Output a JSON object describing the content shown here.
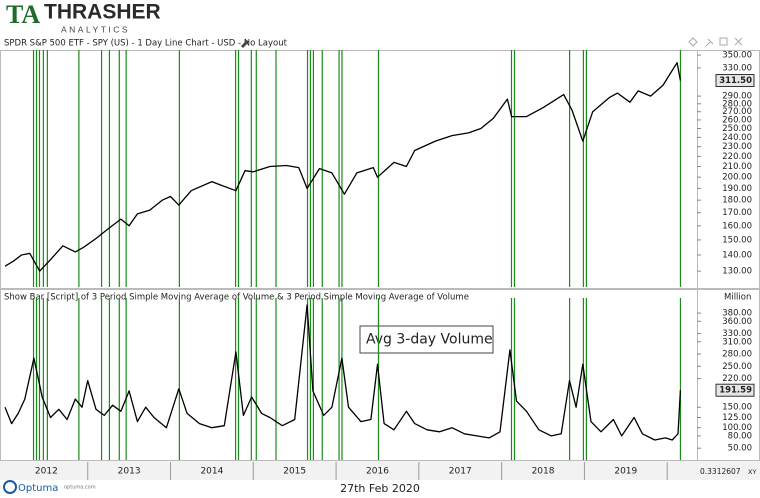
{
  "header": {
    "logo": "TA",
    "brand": "THRASHER",
    "tagline": "ANALYTICS"
  },
  "chart_data": [
    {
      "type": "line",
      "title": "SPDR S&P 500 ETF - SPY (US) - 1 Day Line Chart - USD - No Layout",
      "color": "#000000",
      "log_scale": true,
      "xlim": [
        2011.94,
        2020.36
      ],
      "ylim": [
        122,
        355
      ],
      "x": [
        2012.0,
        2012.1,
        2012.2,
        2012.3,
        2012.42,
        2012.55,
        2012.7,
        2012.85,
        2012.95,
        2013.1,
        2013.25,
        2013.4,
        2013.5,
        2013.6,
        2013.75,
        2013.9,
        2014.0,
        2014.1,
        2014.25,
        2014.5,
        2014.6,
        2014.79,
        2014.9,
        2015.0,
        2015.2,
        2015.4,
        2015.55,
        2015.65,
        2015.8,
        2015.95,
        2016.1,
        2016.25,
        2016.45,
        2016.5,
        2016.7,
        2016.85,
        2016.95,
        2017.2,
        2017.4,
        2017.6,
        2017.75,
        2017.9,
        2018.07,
        2018.12,
        2018.3,
        2018.5,
        2018.75,
        2018.85,
        2018.98,
        2019.1,
        2019.3,
        2019.4,
        2019.55,
        2019.65,
        2019.8,
        2019.95,
        2020.05,
        2020.12,
        2020.16
      ],
      "values": [
        133,
        136,
        140,
        141,
        130,
        137,
        146,
        142,
        145,
        151,
        158,
        165,
        160,
        169,
        172,
        180,
        183,
        176,
        188,
        196,
        193,
        188,
        206,
        205,
        210,
        211,
        209,
        190,
        208,
        204,
        185,
        204,
        209,
        200,
        214,
        210,
        226,
        236,
        242,
        245,
        250,
        262,
        286,
        264,
        264,
        275,
        292,
        272,
        236,
        270,
        288,
        294,
        282,
        297,
        290,
        305,
        324,
        338,
        311.5
      ],
      "yticks": [
        {
          "value": 130,
          "label": "130.00"
        },
        {
          "value": 140,
          "label": "140.00"
        },
        {
          "value": 150,
          "label": "150.00"
        },
        {
          "value": 160,
          "label": "160.00"
        },
        {
          "value": 170,
          "label": "170.00"
        },
        {
          "value": 180,
          "label": "180.00"
        },
        {
          "value": 190,
          "label": "190.00"
        },
        {
          "value": 200,
          "label": "200.00"
        },
        {
          "value": 210,
          "label": "210.00"
        },
        {
          "value": 220,
          "label": "220.00"
        },
        {
          "value": 230,
          "label": "230.00"
        },
        {
          "value": 240,
          "label": "240.00"
        },
        {
          "value": 250,
          "label": "250.00"
        },
        {
          "value": 260,
          "label": "260.00"
        },
        {
          "value": 270,
          "label": "270.00"
        },
        {
          "value": 280,
          "label": "280.00"
        },
        {
          "value": 290,
          "label": "290.00"
        },
        {
          "value": 330,
          "label": "330.00"
        },
        {
          "value": 350,
          "label": "350.00"
        }
      ],
      "last": {
        "value": 311.5,
        "label": "311.50"
      },
      "signal_color": "#1a8c1a",
      "signals": [
        2012.345,
        2012.381,
        2012.417,
        2012.464,
        2012.512,
        2012.893,
        2013.167,
        2013.262,
        2013.381,
        2013.464,
        2014.107,
        2014.786,
        2014.821,
        2014.976,
        2015.036,
        2015.274,
        2015.655,
        2015.69,
        2015.726,
        2015.833,
        2016.036,
        2016.071,
        2016.512,
        2018.119,
        2018.155,
        2018.821,
        2018.988,
        2019.024,
        2020.16
      ]
    },
    {
      "type": "line",
      "title": "Show Bar [Script] of 3 Period Simple Moving Average of Volume & 3 Period Simple Moving Average of Volume",
      "y_unit": "Million",
      "color": "#000000",
      "log_scale": false,
      "annotation": "Avg 3-day Volume",
      "xlim": [
        2011.94,
        2020.36
      ],
      "ylim": [
        26,
        412
      ],
      "x": [
        2012.0,
        2012.08,
        2012.16,
        2012.24,
        2012.35,
        2012.45,
        2012.55,
        2012.65,
        2012.75,
        2012.85,
        2012.93,
        2013.0,
        2013.1,
        2013.2,
        2013.3,
        2013.4,
        2013.5,
        2013.6,
        2013.7,
        2013.8,
        2013.95,
        2014.1,
        2014.2,
        2014.35,
        2014.5,
        2014.65,
        2014.79,
        2014.88,
        2014.98,
        2015.1,
        2015.2,
        2015.35,
        2015.5,
        2015.65,
        2015.72,
        2015.85,
        2015.95,
        2016.07,
        2016.15,
        2016.3,
        2016.42,
        2016.5,
        2016.58,
        2016.7,
        2016.85,
        2016.95,
        2017.1,
        2017.25,
        2017.4,
        2017.55,
        2017.7,
        2017.85,
        2017.98,
        2018.1,
        2018.18,
        2018.3,
        2018.45,
        2018.6,
        2018.72,
        2018.82,
        2018.9,
        2018.98,
        2019.08,
        2019.2,
        2019.35,
        2019.45,
        2019.6,
        2019.7,
        2019.85,
        2019.98,
        2020.06,
        2020.13,
        2020.16
      ],
      "values": [
        150,
        110,
        135,
        170,
        270,
        175,
        125,
        145,
        120,
        170,
        150,
        215,
        145,
        130,
        155,
        140,
        190,
        115,
        150,
        125,
        100,
        195,
        135,
        110,
        100,
        105,
        285,
        130,
        175,
        135,
        125,
        105,
        120,
        400,
        190,
        130,
        150,
        270,
        150,
        115,
        120,
        255,
        110,
        95,
        140,
        110,
        95,
        90,
        100,
        85,
        80,
        75,
        90,
        290,
        165,
        140,
        95,
        80,
        85,
        215,
        150,
        255,
        115,
        90,
        120,
        80,
        125,
        85,
        70,
        75,
        70,
        85,
        191.59
      ],
      "yticks": [
        {
          "value": 50,
          "label": "50.00"
        },
        {
          "value": 80,
          "label": "80.00"
        },
        {
          "value": 100,
          "label": "100.00"
        },
        {
          "value": 125,
          "label": "125.00"
        },
        {
          "value": 150,
          "label": "150.00"
        },
        {
          "value": 220,
          "label": "220.00"
        },
        {
          "value": 250,
          "label": "250.00"
        },
        {
          "value": 280,
          "label": "280.00"
        },
        {
          "value": 310,
          "label": "310.00"
        },
        {
          "value": 330,
          "label": "330.00"
        },
        {
          "value": 360,
          "label": "360.00"
        },
        {
          "value": 380,
          "label": "380.00"
        }
      ],
      "last": {
        "value": 191.59,
        "label": "191.59"
      },
      "xticks": [
        {
          "value": 2012.5,
          "label": "2012"
        },
        {
          "value": 2013.5,
          "label": "2013"
        },
        {
          "value": 2014.5,
          "label": "2014"
        },
        {
          "value": 2015.5,
          "label": "2015"
        },
        {
          "value": 2016.5,
          "label": "2016"
        },
        {
          "value": 2017.5,
          "label": "2017"
        },
        {
          "value": 2018.5,
          "label": "2018"
        },
        {
          "value": 2019.5,
          "label": "2019"
        }
      ]
    }
  ],
  "axis_corner": {
    "scale": "0.3312607",
    "mode": "XY"
  },
  "footer": {
    "brand": "Optuma",
    "url": "optuma.com",
    "date": "27th Feb 2020"
  }
}
